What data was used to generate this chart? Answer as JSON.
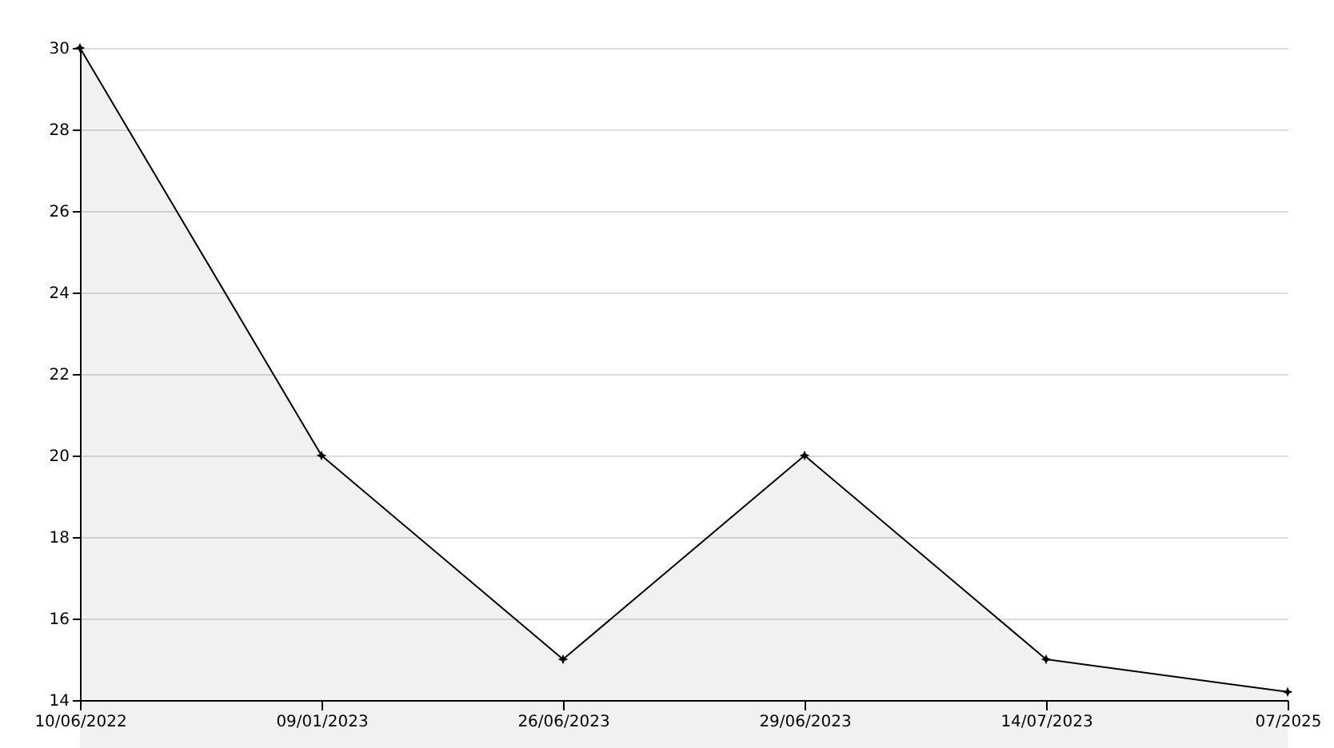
{
  "chart_data": {
    "type": "area",
    "categories": [
      "10/06/2022",
      "09/01/2023",
      "26/06/2023",
      "29/06/2023",
      "14/07/2023",
      "07/2025"
    ],
    "series": [
      {
        "color": "#000000",
        "values": [
          30,
          20,
          15,
          20,
          15,
          14.2
        ]
      }
    ],
    "ylim": [
      14,
      30
    ],
    "yticks": [
      14,
      16,
      18,
      20,
      22,
      24,
      26,
      28,
      30
    ],
    "grid": "y",
    "marker": "star"
  }
}
